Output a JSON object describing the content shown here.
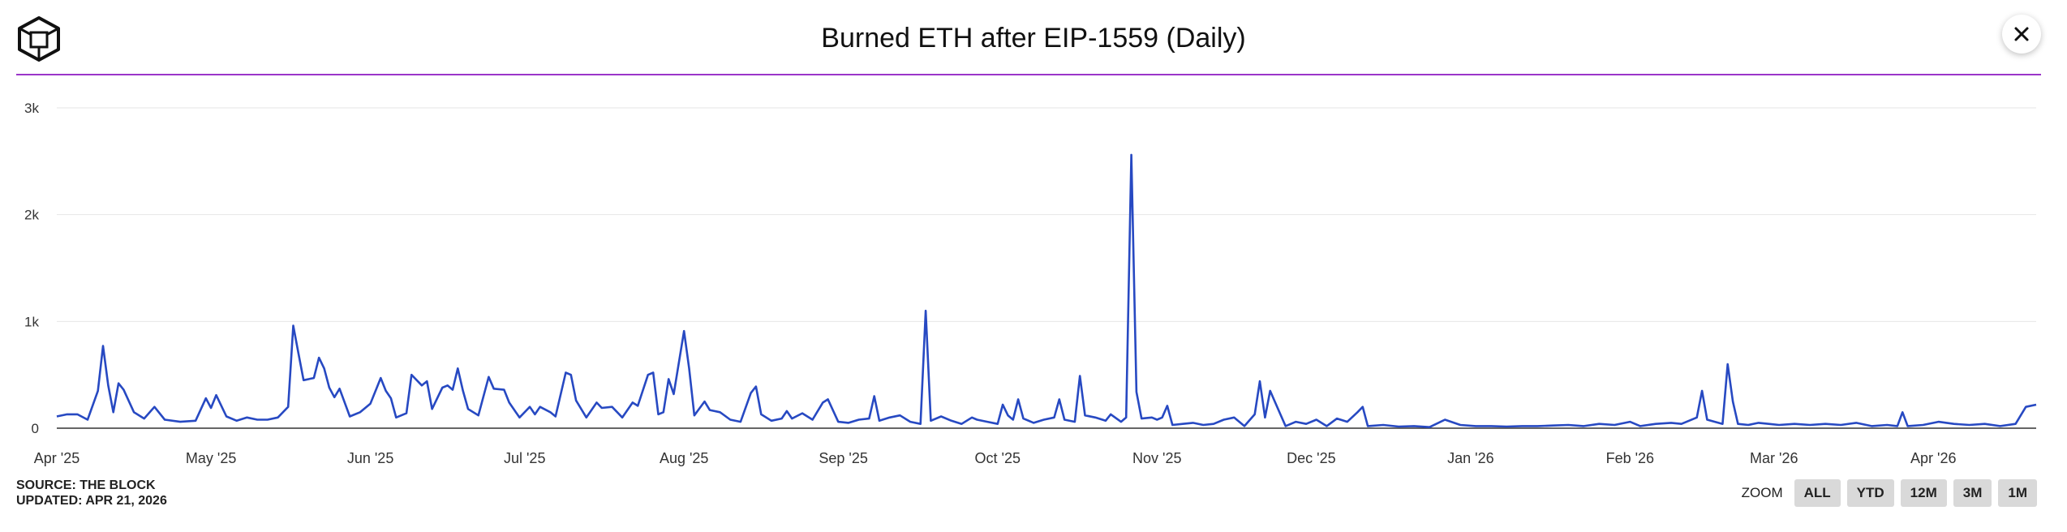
{
  "header": {
    "title": "Burned ETH after EIP-1559 (Daily)"
  },
  "footer": {
    "source": "SOURCE: THE BLOCK",
    "updated": "UPDATED: APR 21, 2026"
  },
  "zoom": {
    "label": "ZOOM",
    "buttons": [
      "ALL",
      "YTD",
      "12M",
      "3M",
      "1M"
    ]
  },
  "colors": {
    "line": "#2749c2",
    "accent_rule": "#9b35c9",
    "grid": "#e6e6e6"
  },
  "icons": {
    "logo": "the-block-cube-logo",
    "close": "close-icon"
  },
  "chart_data": {
    "type": "line",
    "title": "Burned ETH after EIP-1559 (Daily)",
    "xlabel": "",
    "ylabel": "",
    "x_range": [
      "2025-04-01",
      "2026-04-21"
    ],
    "ylim": [
      0,
      3000
    ],
    "yticks": [
      0,
      1000,
      2000,
      3000
    ],
    "ytick_labels": [
      "0",
      "1k",
      "2k",
      "3k"
    ],
    "xticks": [
      "2025-04-01",
      "2025-05-01",
      "2025-06-01",
      "2025-07-01",
      "2025-08-01",
      "2025-09-01",
      "2025-10-01",
      "2025-11-01",
      "2025-12-01",
      "2026-01-01",
      "2026-02-01",
      "2026-03-01",
      "2026-04-01"
    ],
    "xtick_labels": [
      "Apr '25",
      "May '25",
      "Jun '25",
      "Jul '25",
      "Aug '25",
      "Sep '25",
      "Oct '25",
      "Nov '25",
      "Dec '25",
      "Jan '26",
      "Feb '26",
      "Mar '26",
      "Apr '26"
    ],
    "grid": true,
    "legend": "none",
    "series": [
      {
        "name": "",
        "points": [
          [
            "2025-04-01",
            110
          ],
          [
            "2025-04-03",
            130
          ],
          [
            "2025-04-05",
            130
          ],
          [
            "2025-04-07",
            80
          ],
          [
            "2025-04-09",
            350
          ],
          [
            "2025-04-10",
            770
          ],
          [
            "2025-04-11",
            400
          ],
          [
            "2025-04-12",
            150
          ],
          [
            "2025-04-13",
            420
          ],
          [
            "2025-04-14",
            360
          ],
          [
            "2025-04-16",
            150
          ],
          [
            "2025-04-18",
            90
          ],
          [
            "2025-04-20",
            200
          ],
          [
            "2025-04-22",
            80
          ],
          [
            "2025-04-25",
            60
          ],
          [
            "2025-04-28",
            70
          ],
          [
            "2025-04-30",
            280
          ],
          [
            "2025-05-01",
            190
          ],
          [
            "2025-05-02",
            310
          ],
          [
            "2025-05-04",
            110
          ],
          [
            "2025-05-06",
            70
          ],
          [
            "2025-05-08",
            100
          ],
          [
            "2025-05-10",
            80
          ],
          [
            "2025-05-12",
            80
          ],
          [
            "2025-05-14",
            100
          ],
          [
            "2025-05-16",
            200
          ],
          [
            "2025-05-17",
            960
          ],
          [
            "2025-05-18",
            700
          ],
          [
            "2025-05-19",
            450
          ],
          [
            "2025-05-21",
            470
          ],
          [
            "2025-05-22",
            660
          ],
          [
            "2025-05-23",
            560
          ],
          [
            "2025-05-24",
            380
          ],
          [
            "2025-05-25",
            290
          ],
          [
            "2025-05-26",
            370
          ],
          [
            "2025-05-28",
            110
          ],
          [
            "2025-05-30",
            150
          ],
          [
            "2025-06-01",
            230
          ],
          [
            "2025-06-03",
            470
          ],
          [
            "2025-06-04",
            350
          ],
          [
            "2025-06-05",
            280
          ],
          [
            "2025-06-06",
            100
          ],
          [
            "2025-06-08",
            140
          ],
          [
            "2025-06-09",
            500
          ],
          [
            "2025-06-11",
            400
          ],
          [
            "2025-06-12",
            440
          ],
          [
            "2025-06-13",
            180
          ],
          [
            "2025-06-15",
            380
          ],
          [
            "2025-06-16",
            400
          ],
          [
            "2025-06-17",
            360
          ],
          [
            "2025-06-18",
            560
          ],
          [
            "2025-06-19",
            350
          ],
          [
            "2025-06-20",
            180
          ],
          [
            "2025-06-22",
            120
          ],
          [
            "2025-06-24",
            480
          ],
          [
            "2025-06-25",
            370
          ],
          [
            "2025-06-27",
            360
          ],
          [
            "2025-06-28",
            240
          ],
          [
            "2025-06-30",
            100
          ],
          [
            "2025-07-02",
            200
          ],
          [
            "2025-07-03",
            130
          ],
          [
            "2025-07-04",
            200
          ],
          [
            "2025-07-06",
            150
          ],
          [
            "2025-07-07",
            110
          ],
          [
            "2025-07-09",
            520
          ],
          [
            "2025-07-10",
            500
          ],
          [
            "2025-07-11",
            260
          ],
          [
            "2025-07-13",
            100
          ],
          [
            "2025-07-15",
            240
          ],
          [
            "2025-07-16",
            190
          ],
          [
            "2025-07-18",
            200
          ],
          [
            "2025-07-20",
            100
          ],
          [
            "2025-07-22",
            240
          ],
          [
            "2025-07-23",
            210
          ],
          [
            "2025-07-25",
            500
          ],
          [
            "2025-07-26",
            520
          ],
          [
            "2025-07-27",
            130
          ],
          [
            "2025-07-28",
            150
          ],
          [
            "2025-07-29",
            460
          ],
          [
            "2025-07-30",
            320
          ],
          [
            "2025-08-01",
            910
          ],
          [
            "2025-08-02",
            560
          ],
          [
            "2025-08-03",
            120
          ],
          [
            "2025-08-05",
            250
          ],
          [
            "2025-08-06",
            170
          ],
          [
            "2025-08-08",
            150
          ],
          [
            "2025-08-10",
            80
          ],
          [
            "2025-08-12",
            60
          ],
          [
            "2025-08-14",
            330
          ],
          [
            "2025-08-15",
            390
          ],
          [
            "2025-08-16",
            130
          ],
          [
            "2025-08-18",
            70
          ],
          [
            "2025-08-20",
            90
          ],
          [
            "2025-08-21",
            160
          ],
          [
            "2025-08-22",
            90
          ],
          [
            "2025-08-24",
            140
          ],
          [
            "2025-08-26",
            80
          ],
          [
            "2025-08-28",
            240
          ],
          [
            "2025-08-29",
            270
          ],
          [
            "2025-08-31",
            60
          ],
          [
            "2025-09-02",
            50
          ],
          [
            "2025-09-04",
            80
          ],
          [
            "2025-09-06",
            90
          ],
          [
            "2025-09-07",
            300
          ],
          [
            "2025-09-08",
            70
          ],
          [
            "2025-09-10",
            100
          ],
          [
            "2025-09-12",
            120
          ],
          [
            "2025-09-14",
            60
          ],
          [
            "2025-09-16",
            40
          ],
          [
            "2025-09-17",
            1100
          ],
          [
            "2025-09-18",
            70
          ],
          [
            "2025-09-20",
            110
          ],
          [
            "2025-09-22",
            70
          ],
          [
            "2025-09-24",
            40
          ],
          [
            "2025-09-26",
            100
          ],
          [
            "2025-09-27",
            80
          ],
          [
            "2025-09-29",
            60
          ],
          [
            "2025-10-01",
            40
          ],
          [
            "2025-10-02",
            220
          ],
          [
            "2025-10-03",
            120
          ],
          [
            "2025-10-04",
            80
          ],
          [
            "2025-10-05",
            270
          ],
          [
            "2025-10-06",
            90
          ],
          [
            "2025-10-08",
            50
          ],
          [
            "2025-10-10",
            80
          ],
          [
            "2025-10-12",
            100
          ],
          [
            "2025-10-13",
            270
          ],
          [
            "2025-10-14",
            80
          ],
          [
            "2025-10-16",
            60
          ],
          [
            "2025-10-17",
            490
          ],
          [
            "2025-10-18",
            120
          ],
          [
            "2025-10-20",
            100
          ],
          [
            "2025-10-22",
            70
          ],
          [
            "2025-10-23",
            130
          ],
          [
            "2025-10-25",
            60
          ],
          [
            "2025-10-26",
            100
          ],
          [
            "2025-10-27",
            2560
          ],
          [
            "2025-10-28",
            340
          ],
          [
            "2025-10-29",
            90
          ],
          [
            "2025-10-31",
            100
          ],
          [
            "2025-11-01",
            80
          ],
          [
            "2025-11-02",
            100
          ],
          [
            "2025-11-03",
            210
          ],
          [
            "2025-11-04",
            30
          ],
          [
            "2025-11-06",
            40
          ],
          [
            "2025-11-08",
            50
          ],
          [
            "2025-11-10",
            30
          ],
          [
            "2025-11-12",
            40
          ],
          [
            "2025-11-14",
            80
          ],
          [
            "2025-11-16",
            100
          ],
          [
            "2025-11-18",
            20
          ],
          [
            "2025-11-20",
            130
          ],
          [
            "2025-11-21",
            440
          ],
          [
            "2025-11-22",
            100
          ],
          [
            "2025-11-23",
            350
          ],
          [
            "2025-11-24",
            240
          ],
          [
            "2025-11-26",
            20
          ],
          [
            "2025-11-28",
            60
          ],
          [
            "2025-11-30",
            40
          ],
          [
            "2025-12-02",
            80
          ],
          [
            "2025-12-04",
            20
          ],
          [
            "2025-12-06",
            90
          ],
          [
            "2025-12-08",
            60
          ],
          [
            "2025-12-10",
            150
          ],
          [
            "2025-12-11",
            200
          ],
          [
            "2025-12-12",
            20
          ],
          [
            "2025-12-15",
            30
          ],
          [
            "2025-12-18",
            15
          ],
          [
            "2025-12-21",
            20
          ],
          [
            "2025-12-24",
            10
          ],
          [
            "2025-12-27",
            80
          ],
          [
            "2025-12-30",
            30
          ],
          [
            "2026-01-02",
            20
          ],
          [
            "2026-01-05",
            20
          ],
          [
            "2026-01-08",
            15
          ],
          [
            "2026-01-11",
            20
          ],
          [
            "2026-01-14",
            20
          ],
          [
            "2026-01-17",
            25
          ],
          [
            "2026-01-20",
            30
          ],
          [
            "2026-01-23",
            20
          ],
          [
            "2026-01-26",
            40
          ],
          [
            "2026-01-29",
            30
          ],
          [
            "2026-02-01",
            60
          ],
          [
            "2026-02-03",
            20
          ],
          [
            "2026-02-06",
            40
          ],
          [
            "2026-02-09",
            50
          ],
          [
            "2026-02-11",
            40
          ],
          [
            "2026-02-14",
            100
          ],
          [
            "2026-02-15",
            350
          ],
          [
            "2026-02-16",
            80
          ],
          [
            "2026-02-19",
            40
          ],
          [
            "2026-02-20",
            600
          ],
          [
            "2026-02-21",
            250
          ],
          [
            "2026-02-22",
            40
          ],
          [
            "2026-02-24",
            30
          ],
          [
            "2026-02-26",
            50
          ],
          [
            "2026-02-28",
            40
          ],
          [
            "2026-03-02",
            30
          ],
          [
            "2026-03-05",
            40
          ],
          [
            "2026-03-08",
            30
          ],
          [
            "2026-03-11",
            40
          ],
          [
            "2026-03-14",
            30
          ],
          [
            "2026-03-17",
            50
          ],
          [
            "2026-03-20",
            20
          ],
          [
            "2026-03-23",
            30
          ],
          [
            "2026-03-25",
            20
          ],
          [
            "2026-03-26",
            150
          ],
          [
            "2026-03-27",
            20
          ],
          [
            "2026-03-30",
            30
          ],
          [
            "2026-04-02",
            60
          ],
          [
            "2026-04-05",
            40
          ],
          [
            "2026-04-08",
            30
          ],
          [
            "2026-04-11",
            40
          ],
          [
            "2026-04-14",
            20
          ],
          [
            "2026-04-17",
            40
          ],
          [
            "2026-04-19",
            200
          ],
          [
            "2026-04-21",
            220
          ]
        ]
      }
    ]
  }
}
